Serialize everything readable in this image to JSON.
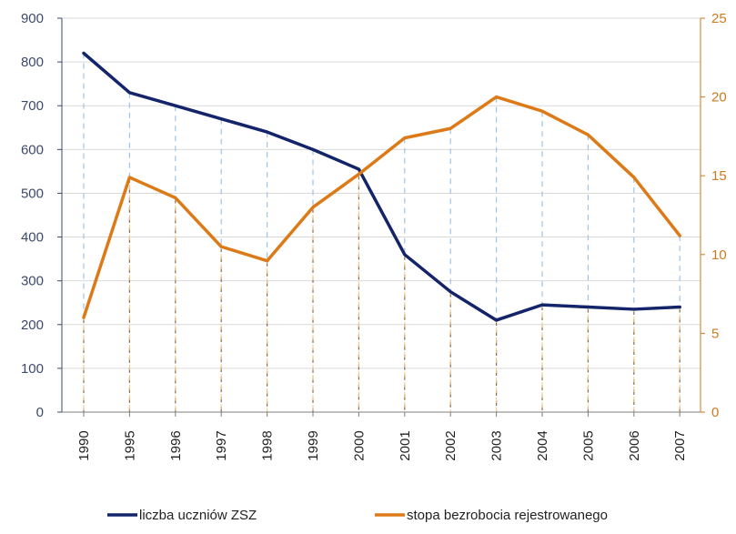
{
  "chart_data": {
    "type": "line",
    "categories": [
      "1990",
      "1995",
      "1996",
      "1997",
      "1998",
      "1999",
      "2000",
      "2001",
      "2002",
      "2003",
      "2004",
      "2005",
      "2006",
      "2007"
    ],
    "y_left": {
      "ticks": [
        0,
        100,
        200,
        300,
        400,
        500,
        600,
        700,
        800,
        900
      ],
      "ylim": [
        0,
        900
      ],
      "tick_labels": [
        "0",
        "100",
        "200",
        "300",
        "400",
        "500",
        "600",
        "700",
        "800",
        "900"
      ]
    },
    "y_right": {
      "ticks": [
        0,
        5,
        10,
        15,
        20,
        25
      ],
      "ylim": [
        0,
        25
      ],
      "tick_labels": [
        "0",
        "5",
        "10",
        "15",
        "20",
        "25"
      ]
    },
    "grid": true,
    "series": [
      {
        "name": "liczba uczniów ZSZ",
        "axis": "left",
        "color": "#14246a",
        "values": [
          820,
          730,
          700,
          670,
          640,
          600,
          555,
          360,
          275,
          210,
          245,
          240,
          235,
          240
        ]
      },
      {
        "name": "stopa bezrobocia rejestrowanego",
        "axis": "right",
        "color": "#dd7a18",
        "values": [
          6.0,
          14.9,
          13.6,
          10.5,
          9.6,
          13.0,
          15.1,
          17.4,
          18.0,
          20.0,
          19.1,
          17.6,
          14.9,
          11.2
        ]
      }
    ],
    "legend_position": "bottom"
  },
  "colors": {
    "left_axis": "#3b4a6b",
    "right_axis": "#cc7a1e",
    "grid": "#d9d9d9"
  }
}
